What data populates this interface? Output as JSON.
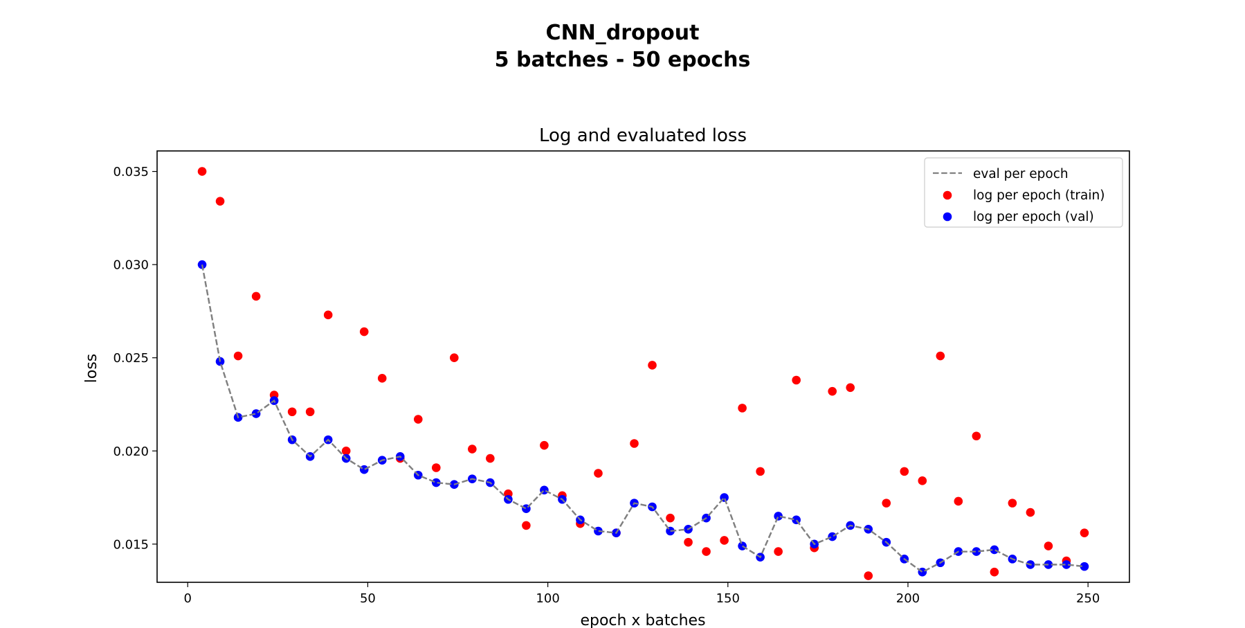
{
  "figure": {
    "title_line1": "CNN_dropout",
    "title_line2": "5 batches - 50 epochs"
  },
  "chart_data": {
    "type": "scatter",
    "title": "Log and evaluated loss",
    "xlabel": "epoch x batches",
    "ylabel": "loss",
    "xlim": [
      -8.5,
      261.5
    ],
    "ylim": [
      0.01295,
      0.0361
    ],
    "xticks": [
      0,
      50,
      100,
      150,
      200,
      250
    ],
    "yticks": [
      0.015,
      0.02,
      0.025,
      0.03,
      0.035
    ],
    "ytick_labels": [
      "0.015",
      "0.020",
      "0.025",
      "0.030",
      "0.035"
    ],
    "legend_position": "top-right",
    "x": [
      4,
      9,
      14,
      19,
      24,
      29,
      34,
      39,
      44,
      49,
      54,
      59,
      64,
      69,
      74,
      79,
      84,
      89,
      94,
      99,
      104,
      109,
      114,
      119,
      124,
      129,
      134,
      139,
      144,
      149,
      154,
      159,
      164,
      169,
      174,
      179,
      184,
      189,
      194,
      199,
      204,
      209,
      214,
      219,
      224,
      229,
      234,
      239,
      244,
      249
    ],
    "series": [
      {
        "name": "eval per epoch",
        "kind": "line",
        "style": "dashed",
        "color": "#808080",
        "values": [
          0.03,
          0.0248,
          0.0218,
          0.022,
          0.0227,
          0.0206,
          0.0197,
          0.0206,
          0.0196,
          0.019,
          0.0195,
          0.0197,
          0.0187,
          0.0183,
          0.0182,
          0.0185,
          0.0183,
          0.0174,
          0.0169,
          0.0179,
          0.0174,
          0.0163,
          0.0157,
          0.0156,
          0.0172,
          0.017,
          0.0157,
          0.0158,
          0.0164,
          0.0175,
          0.0149,
          0.0143,
          0.0165,
          0.0163,
          0.015,
          0.0154,
          0.016,
          0.0158,
          0.0151,
          0.0142,
          0.0135,
          0.014,
          0.0146,
          0.0146,
          0.0147,
          0.0142,
          0.0139,
          0.0139,
          0.0139,
          0.0138
        ]
      },
      {
        "name": "log per epoch (train)",
        "kind": "scatter",
        "color": "#ff0000",
        "values": [
          0.035,
          0.0334,
          0.0251,
          0.0283,
          0.023,
          0.0221,
          0.0221,
          0.0273,
          0.02,
          0.0264,
          0.0239,
          0.0196,
          0.0217,
          0.0191,
          0.025,
          0.0201,
          0.0196,
          0.0177,
          0.016,
          0.0203,
          0.0176,
          0.0161,
          0.0188,
          0.0156,
          0.0204,
          0.0246,
          0.0164,
          0.0151,
          0.0146,
          0.0152,
          0.0223,
          0.0189,
          0.0146,
          0.0238,
          0.0148,
          0.0232,
          0.0234,
          0.0133,
          0.0172,
          0.0189,
          0.0184,
          0.0251,
          0.0173,
          0.0208,
          0.0135,
          0.0172,
          0.0167,
          0.0149,
          0.0141,
          0.0156
        ]
      },
      {
        "name": "log per epoch (val)",
        "kind": "scatter",
        "color": "#0000ff",
        "values": [
          0.03,
          0.0248,
          0.0218,
          0.022,
          0.0227,
          0.0206,
          0.0197,
          0.0206,
          0.0196,
          0.019,
          0.0195,
          0.0197,
          0.0187,
          0.0183,
          0.0182,
          0.0185,
          0.0183,
          0.0174,
          0.0169,
          0.0179,
          0.0174,
          0.0163,
          0.0157,
          0.0156,
          0.0172,
          0.017,
          0.0157,
          0.0158,
          0.0164,
          0.0175,
          0.0149,
          0.0143,
          0.0165,
          0.0163,
          0.015,
          0.0154,
          0.016,
          0.0158,
          0.0151,
          0.0142,
          0.0135,
          0.014,
          0.0146,
          0.0146,
          0.0147,
          0.0142,
          0.0139,
          0.0139,
          0.0139,
          0.0138
        ]
      }
    ]
  }
}
